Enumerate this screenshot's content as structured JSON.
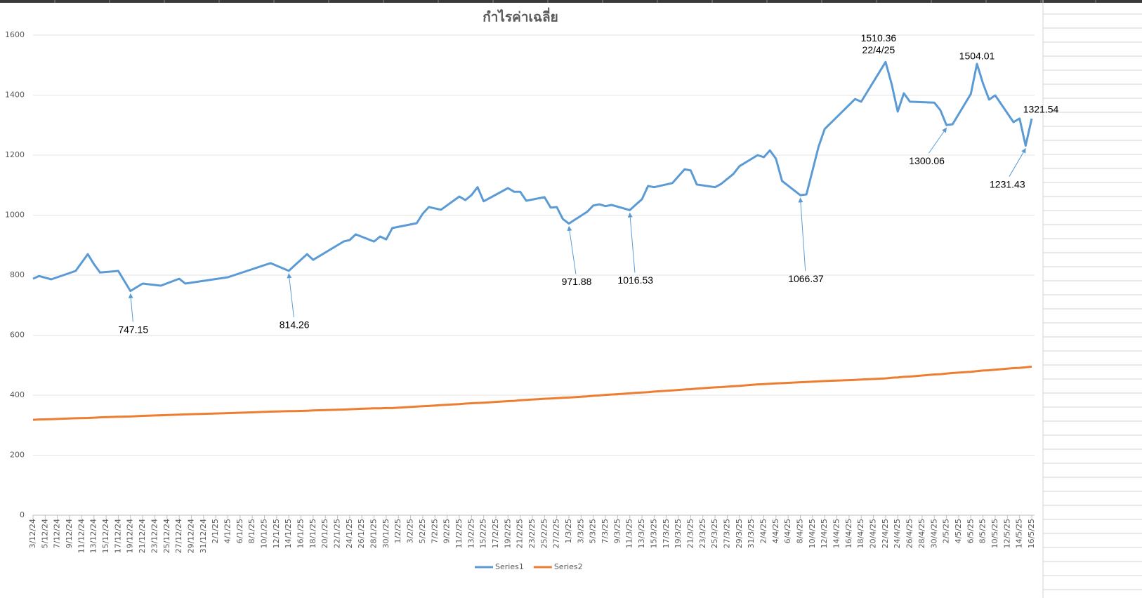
{
  "chart_data": {
    "type": "line",
    "title": "กำไรค่าเฉลี่ย",
    "x": [
      "3/12/24",
      "4/12/24",
      "6/12/24",
      "10/12/24",
      "12/12/24",
      "13/12/24",
      "14/12/24",
      "17/12/24",
      "19/12/24",
      "21/12/24",
      "24/12/24",
      "27/12/24",
      "28/12/24",
      "4/1/25",
      "11/1/25",
      "14/1/25",
      "15/1/25",
      "17/1/25",
      "18/1/25",
      "23/1/25",
      "24/1/25",
      "25/1/25",
      "28/1/25",
      "29/1/25",
      "30/1/25",
      "31/1/25",
      "4/2/25",
      "5/2/25",
      "6/2/25",
      "8/2/25",
      "11/2/25",
      "12/2/25",
      "13/2/25",
      "14/2/25",
      "15/2/25",
      "19/2/25",
      "20/2/25",
      "21/2/25",
      "22/2/25",
      "25/2/25",
      "26/2/25",
      "27/2/25",
      "28/2/25",
      "1/3/25",
      "4/3/25",
      "5/3/25",
      "6/3/25",
      "7/3/25",
      "8/3/25",
      "11/3/25",
      "12/3/25",
      "13/3/25",
      "14/3/25",
      "15/3/25",
      "18/3/25",
      "20/3/25",
      "21/3/25",
      "22/3/25",
      "25/3/25",
      "26/3/25",
      "28/3/25",
      "29/3/25",
      "1/4/25",
      "2/4/25",
      "3/4/25",
      "4/4/25",
      "5/4/25",
      "8/4/25",
      "9/4/25",
      "11/4/25",
      "12/4/25",
      "17/4/25",
      "18/4/25",
      "22/4/25",
      "23/4/25",
      "24/4/25",
      "25/4/25",
      "26/4/25",
      "30/4/25",
      "1/5/25",
      "2/5/25",
      "3/5/25",
      "6/5/25",
      "7/5/25",
      "8/5/25",
      "9/5/25",
      "10/5/25",
      "13/5/25",
      "14/5/25",
      "15/5/25",
      "16/5/25"
    ],
    "series": [
      {
        "name": "Series1",
        "color": "#5b9bd5",
        "values": [
          788,
          797,
          786,
          814,
          870,
          837,
          809,
          814,
          747.15,
          772,
          765,
          788,
          772,
          793,
          840,
          814.26,
          833,
          870,
          851,
          912,
          917,
          936,
          912,
          929,
          919,
          957,
          973,
          1005,
          1027,
          1018,
          1062,
          1050,
          1067,
          1093,
          1046,
          1090,
          1078,
          1078,
          1048,
          1060,
          1025,
          1027,
          987,
          971.88,
          1011,
          1032,
          1036,
          1030,
          1034,
          1016.53,
          1035,
          1053,
          1097,
          1093,
          1107,
          1153,
          1149,
          1102,
          1093,
          1104,
          1137,
          1163,
          1200,
          1193,
          1216,
          1188,
          1114,
          1066.37,
          1069,
          1228,
          1287,
          1387,
          1378,
          1510.36,
          1436,
          1345,
          1406,
          1378,
          1375,
          1350,
          1300.06,
          1303,
          1404,
          1504.01,
          1439,
          1385,
          1399,
          1310,
          1322,
          1231.43,
          1321.54
        ]
      },
      {
        "name": "Series2",
        "color": "#ed7d31",
        "values": [
          318,
          319,
          320,
          323,
          324,
          325,
          326,
          328,
          329,
          331,
          333,
          335,
          336,
          340,
          345,
          347,
          347,
          348,
          349,
          352,
          353,
          354,
          356,
          356,
          357,
          357,
          362,
          363,
          364,
          367,
          370,
          372,
          373,
          374,
          375,
          380,
          381,
          383,
          384,
          388,
          389,
          390,
          391,
          392,
          396,
          398,
          399,
          401,
          402,
          406,
          408,
          409,
          410,
          412,
          416,
          419,
          420,
          422,
          426,
          427,
          430,
          431,
          436,
          437,
          438,
          439,
          440,
          443,
          444,
          446,
          447,
          451,
          452,
          456,
          458,
          459,
          461,
          462,
          469,
          470,
          472,
          474,
          478,
          480,
          482,
          483,
          485,
          490,
          491,
          493,
          495
        ]
      }
    ],
    "xlim": [
      "3/12/24",
      "16/5/25"
    ],
    "xticks": [
      "3/12/24",
      "5/12/24",
      "7/12/24",
      "9/12/24",
      "11/12/24",
      "13/12/24",
      "15/12/24",
      "17/12/24",
      "19/12/24",
      "21/12/24",
      "23/12/24",
      "25/12/24",
      "27/12/24",
      "29/12/24",
      "31/12/24",
      "2/1/25",
      "4/1/25",
      "6/1/25",
      "8/1/25",
      "10/1/25",
      "12/1/25",
      "14/1/25",
      "16/1/25",
      "18/1/25",
      "20/1/25",
      "22/1/25",
      "24/1/25",
      "26/1/25",
      "28/1/25",
      "30/1/25",
      "1/2/25",
      "3/2/25",
      "5/2/25",
      "7/2/25",
      "9/2/25",
      "11/2/25",
      "13/2/25",
      "15/2/25",
      "17/2/25",
      "19/2/25",
      "21/2/25",
      "23/2/25",
      "25/2/25",
      "27/2/25",
      "1/3/25",
      "3/3/25",
      "5/3/25",
      "7/3/25",
      "9/3/25",
      "11/3/25",
      "13/3/25",
      "15/3/25",
      "17/3/25",
      "19/3/25",
      "21/3/25",
      "23/3/25",
      "25/3/25",
      "27/3/25",
      "29/3/25",
      "31/3/25",
      "2/4/25",
      "4/4/25",
      "6/4/25",
      "8/4/25",
      "10/4/25",
      "12/4/25",
      "14/4/25",
      "16/4/25",
      "18/4/25",
      "20/4/25",
      "22/4/25",
      "24/4/25",
      "26/4/25",
      "28/4/25",
      "30/4/25",
      "2/5/25",
      "4/5/25",
      "6/5/25",
      "8/5/25",
      "10/5/25",
      "12/5/25",
      "14/5/25",
      "16/5/25"
    ],
    "ylim": [
      0,
      1600
    ],
    "yticks": [
      0,
      200,
      400,
      600,
      800,
      1000,
      1200,
      1400,
      1600
    ],
    "grid": true,
    "legend": "bottom",
    "annotations": [
      {
        "x": "19/12/24",
        "text": [
          "747.15"
        ]
      },
      {
        "x": "14/1/25",
        "text": [
          "814.26"
        ]
      },
      {
        "x": "1/3/25",
        "text": [
          "971.88"
        ]
      },
      {
        "x": "11/3/25",
        "text": [
          "1016.53"
        ]
      },
      {
        "x": "8/4/25",
        "text": [
          "1066.37"
        ]
      },
      {
        "x": "22/4/25",
        "text": [
          "1510.36",
          "22/4/25"
        ]
      },
      {
        "x": "2/5/25",
        "text": [
          "1300.06"
        ]
      },
      {
        "x": "7/5/25",
        "text": [
          "1504.01"
        ]
      },
      {
        "x": "15/5/25",
        "text": [
          "1231.43"
        ]
      },
      {
        "x": "16/5/25",
        "text": [
          "1321.54"
        ]
      }
    ]
  }
}
